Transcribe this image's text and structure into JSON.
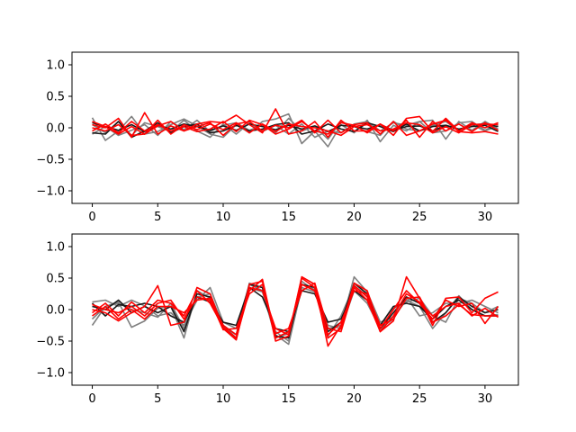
{
  "chart_data": [
    {
      "type": "line",
      "title": "",
      "xlabel": "",
      "ylabel": "",
      "xlim": [
        -1.55,
        32.55
      ],
      "ylim": [
        -1.2,
        1.2
      ],
      "xticks": [
        0,
        5,
        10,
        15,
        20,
        25,
        30
      ],
      "yticks": [
        -1.0,
        -0.5,
        0.0,
        0.5,
        1.0
      ],
      "grid": false,
      "legend": "none",
      "colors": {
        "gray": "#808080",
        "dark": "#1a1a1a",
        "red": "#ff0000"
      },
      "x": [
        0,
        1,
        2,
        3,
        4,
        5,
        6,
        7,
        8,
        9,
        10,
        11,
        12,
        13,
        14,
        15,
        16,
        17,
        18,
        19,
        20,
        21,
        22,
        23,
        24,
        25,
        26,
        27,
        28,
        29,
        30,
        31
      ],
      "series": [
        {
          "color": "gray",
          "values": [
            0.16,
            -0.2,
            -0.05,
            0.18,
            -0.1,
            -0.06,
            0.05,
            0.14,
            0.03,
            -0.1,
            -0.15,
            0.05,
            -0.08,
            0.1,
            0.14,
            0.22,
            -0.25,
            -0.05,
            -0.3,
            0.05,
            -0.08,
            0.12,
            -0.22,
            0.04,
            -0.05,
            0.1,
            0.12,
            -0.18,
            0.1,
            -0.04,
            0.1,
            -0.02
          ]
        },
        {
          "color": "gray",
          "values": [
            -0.1,
            0.02,
            -0.12,
            -0.04,
            0.05,
            -0.12,
            0.1,
            -0.03,
            0.12,
            -0.06,
            0.04,
            0.08,
            -0.04,
            0.04,
            -0.08,
            0.15,
            -0.05,
            0.02,
            -0.18,
            0.1,
            0.02,
            -0.06,
            -0.12,
            0.1,
            -0.02,
            -0.05,
            0.04,
            0.1,
            -0.05,
            0.05,
            -0.05,
            0.03
          ]
        },
        {
          "color": "gray",
          "values": [
            0.05,
            -0.08,
            0.1,
            -0.12,
            0.08,
            0.02,
            -0.06,
            0.12,
            -0.05,
            -0.15,
            0.06,
            -0.1,
            0.08,
            -0.06,
            0.04,
            -0.1,
            0.06,
            -0.15,
            -0.05,
            -0.08,
            0.06,
            0.1,
            -0.05,
            0.08,
            0.04,
            0.1,
            -0.08,
            -0.05,
            0.08,
            0.1,
            -0.04,
            0.08
          ]
        },
        {
          "color": "dark",
          "values": [
            0.08,
            0.02,
            -0.04,
            0.05,
            -0.06,
            0.04,
            -0.02,
            0.06,
            0.02,
            -0.04,
            0.03,
            -0.04,
            0.06,
            0.02,
            -0.03,
            0.04,
            -0.02,
            0.03,
            -0.06,
            0.04,
            0.02,
            -0.02,
            0.05,
            -0.04,
            0.02,
            0.03,
            -0.05,
            0.04,
            -0.02,
            0.02,
            0.04,
            -0.06
          ]
        },
        {
          "color": "dark",
          "values": [
            -0.08,
            -0.1,
            0.1,
            -0.15,
            -0.05,
            0.08,
            -0.08,
            0.02,
            0.06,
            -0.08,
            -0.05,
            0.04,
            -0.05,
            -0.02,
            0.05,
            0.08,
            -0.1,
            -0.05,
            0.06,
            -0.02,
            -0.06,
            0.08,
            0.02,
            -0.06,
            0.06,
            -0.05,
            0.02,
            0.04,
            -0.03,
            0.05,
            0.06,
            0.02
          ]
        },
        {
          "color": "red",
          "values": [
            0.05,
            0.0,
            0.15,
            -0.15,
            0.24,
            -0.1,
            0.03,
            -0.05,
            0.06,
            0.1,
            0.08,
            0.2,
            0.05,
            -0.08,
            0.3,
            -0.1,
            -0.05,
            0.1,
            -0.15,
            0.12,
            -0.05,
            -0.05,
            0.06,
            -0.12,
            0.15,
            0.18,
            -0.06,
            0.15,
            -0.05,
            0.08,
            0.0,
            0.08
          ]
        },
        {
          "color": "red",
          "values": [
            0.0,
            -0.05,
            0.05,
            -0.12,
            -0.1,
            0.03,
            0.1,
            -0.05,
            0.02,
            0.08,
            -0.12,
            0.06,
            0.1,
            -0.05,
            0.04,
            0.0,
            0.12,
            -0.08,
            0.12,
            -0.08,
            0.05,
            0.08,
            -0.1,
            0.1,
            -0.12,
            -0.05,
            0.06,
            0.12,
            -0.06,
            -0.08,
            -0.06,
            -0.1
          ]
        },
        {
          "color": "red",
          "values": [
            -0.05,
            0.06,
            -0.08,
            0.1,
            -0.05,
            0.05,
            -0.05,
            0.02,
            -0.06,
            -0.02,
            0.1,
            -0.06,
            0.12,
            0.05,
            -0.1,
            -0.02,
            0.1,
            -0.05,
            -0.1,
            0.08,
            0.04,
            -0.08,
            0.06,
            -0.05,
            0.12,
            -0.15,
            0.1,
            -0.05,
            0.06,
            -0.06,
            0.08,
            -0.04
          ]
        },
        {
          "color": "red",
          "values": [
            0.1,
            0.02,
            -0.1,
            0.02,
            -0.1,
            0.12,
            -0.1,
            0.05,
            -0.03,
            0.06,
            -0.03,
            0.08,
            -0.08,
            0.06,
            -0.06,
            0.06,
            0.02,
            0.0,
            -0.05,
            -0.12,
            0.02,
            0.05,
            -0.05,
            -0.02,
            0.08,
            0.05,
            -0.08,
            0.02,
            -0.08,
            0.05,
            0.06,
            0.05
          ]
        }
      ]
    },
    {
      "type": "line",
      "title": "",
      "xlabel": "",
      "ylabel": "",
      "xlim": [
        -1.55,
        32.55
      ],
      "ylim": [
        -1.2,
        1.2
      ],
      "xticks": [
        0,
        5,
        10,
        15,
        20,
        25,
        30
      ],
      "yticks": [
        -1.0,
        -0.5,
        0.0,
        0.5,
        1.0
      ],
      "grid": false,
      "legend": "none",
      "colors": {
        "gray": "#808080",
        "dark": "#1a1a1a",
        "red": "#ff0000"
      },
      "x": [
        0,
        1,
        2,
        3,
        4,
        5,
        6,
        7,
        8,
        9,
        10,
        11,
        12,
        13,
        14,
        15,
        16,
        17,
        18,
        19,
        20,
        21,
        22,
        23,
        24,
        25,
        26,
        27,
        28,
        29,
        30,
        31
      ],
      "series": [
        {
          "color": "gray",
          "values": [
            -0.25,
            0.05,
            0.12,
            -0.28,
            -0.18,
            0.02,
            0.05,
            -0.45,
            0.3,
            0.18,
            -0.3,
            -0.48,
            0.42,
            0.35,
            -0.4,
            -0.55,
            0.35,
            0.28,
            -0.3,
            -0.25,
            0.52,
            0.28,
            -0.2,
            -0.12,
            0.15,
            0.05,
            -0.3,
            -0.05,
            0.22,
            0.0,
            -0.1,
            -0.08
          ]
        },
        {
          "color": "gray",
          "values": [
            0.12,
            0.15,
            0.05,
            0.15,
            0.06,
            -0.1,
            -0.05,
            -0.25,
            0.15,
            0.35,
            -0.2,
            -0.3,
            0.4,
            0.3,
            -0.45,
            -0.38,
            0.4,
            0.32,
            -0.42,
            -0.1,
            0.38,
            0.22,
            -0.35,
            0.02,
            0.12,
            0.18,
            -0.1,
            -0.2,
            0.18,
            0.1,
            -0.05,
            0.05
          ]
        },
        {
          "color": "gray",
          "values": [
            -0.15,
            0.05,
            0.1,
            0.0,
            -0.05,
            -0.12,
            0.1,
            -0.3,
            0.2,
            0.25,
            -0.25,
            -0.45,
            0.35,
            0.28,
            -0.35,
            -0.5,
            0.45,
            0.3,
            -0.25,
            -0.3,
            0.3,
            0.1,
            -0.3,
            -0.15,
            0.2,
            -0.1,
            -0.05,
            0.1,
            0.1,
            0.15,
            0.05,
            -0.05
          ]
        },
        {
          "color": "dark",
          "values": [
            0.05,
            0.0,
            0.15,
            -0.05,
            0.05,
            -0.05,
            0.05,
            -0.35,
            0.25,
            0.2,
            -0.25,
            -0.4,
            0.4,
            0.35,
            -0.42,
            -0.45,
            0.4,
            0.35,
            -0.35,
            -0.2,
            0.42,
            0.25,
            -0.3,
            -0.05,
            0.2,
            0.1,
            -0.2,
            -0.05,
            0.2,
            0.05,
            -0.05,
            0.0
          ]
        },
        {
          "color": "dark",
          "values": [
            0.1,
            -0.1,
            0.08,
            0.05,
            0.1,
            0.05,
            -0.1,
            -0.2,
            0.2,
            0.12,
            -0.2,
            -0.25,
            0.35,
            0.2,
            -0.3,
            -0.35,
            0.3,
            0.25,
            -0.2,
            -0.15,
            0.3,
            0.15,
            -0.25,
            0.05,
            0.1,
            0.05,
            -0.15,
            0.05,
            0.15,
            0.0,
            -0.1,
            -0.1
          ]
        },
        {
          "color": "red",
          "values": [
            0.0,
            -0.05,
            -0.18,
            -0.05,
            0.05,
            0.38,
            -0.25,
            -0.2,
            0.35,
            0.25,
            -0.3,
            -0.48,
            0.4,
            0.45,
            -0.5,
            -0.42,
            0.52,
            0.4,
            -0.58,
            -0.25,
            0.38,
            0.2,
            -0.35,
            -0.18,
            0.52,
            0.18,
            -0.25,
            0.18,
            0.2,
            -0.05,
            0.18,
            0.28
          ]
        },
        {
          "color": "red",
          "values": [
            -0.05,
            0.1,
            -0.1,
            0.12,
            -0.05,
            0.15,
            0.1,
            -0.1,
            0.3,
            0.1,
            -0.28,
            -0.45,
            0.3,
            0.48,
            -0.45,
            -0.35,
            0.4,
            0.3,
            -0.45,
            -0.3,
            0.42,
            0.3,
            -0.3,
            0.0,
            0.3,
            0.1,
            -0.15,
            0.15,
            0.05,
            0.1,
            -0.22,
            0.05
          ]
        },
        {
          "color": "red",
          "values": [
            0.08,
            0.0,
            -0.05,
            0.05,
            -0.1,
            0.1,
            0.15,
            -0.15,
            0.2,
            0.15,
            -0.32,
            -0.3,
            0.25,
            0.4,
            -0.38,
            -0.3,
            0.3,
            0.42,
            -0.3,
            -0.35,
            0.35,
            0.15,
            -0.35,
            -0.1,
            0.25,
            0.12,
            -0.1,
            0.05,
            0.1,
            -0.1,
            0.02,
            -0.12
          ]
        },
        {
          "color": "red",
          "values": [
            -0.1,
            0.05,
            -0.15,
            0.0,
            -0.15,
            0.05,
            0.05,
            -0.05,
            0.15,
            0.18,
            -0.25,
            -0.4,
            0.35,
            0.3,
            -0.3,
            -0.4,
            0.5,
            0.35,
            -0.4,
            -0.2,
            0.3,
            0.25,
            -0.25,
            -0.15,
            0.18,
            0.2,
            -0.2,
            -0.1,
            0.08,
            -0.08,
            -0.1,
            -0.1
          ]
        }
      ]
    }
  ]
}
